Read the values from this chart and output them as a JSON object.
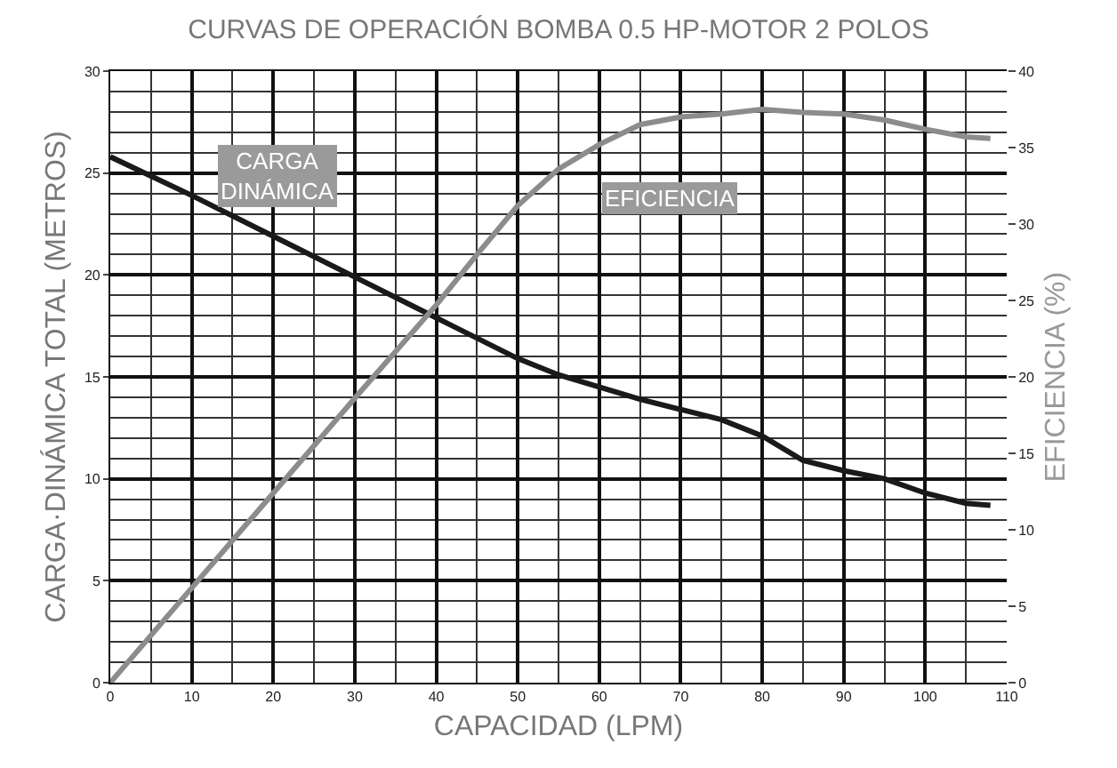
{
  "chart_data": {
    "type": "line",
    "title": "CURVAS DE OPERACIÓN BOMBA 0.5 HP-MOTOR 2 POLOS",
    "xlabel": "CAPACIDAD (LPM)",
    "ylabel": "CARGA·DINÁMICA TOTAL (METROS)",
    "y2label": "EFICIENCIA (%)",
    "series": [
      {
        "name": "CARGA DINÁMICA",
        "color": "#1a1a1a",
        "x": [
          0,
          10,
          20,
          30,
          40,
          50,
          55,
          60,
          65,
          70,
          75,
          80,
          85,
          90,
          95,
          100,
          105,
          108
        ],
        "values": [
          25.8,
          23.9,
          21.9,
          19.9,
          17.9,
          15.9,
          15.1,
          14.5,
          13.9,
          13.4,
          12.9,
          12.1,
          10.9,
          10.4,
          10.0,
          9.3,
          8.8,
          8.7
        ]
      },
      {
        "name": "EFICIENCIA",
        "color": "#8c8c8c",
        "axis": "y2",
        "x": [
          0,
          10,
          20,
          30,
          40,
          45,
          50,
          55,
          60,
          65,
          70,
          75,
          80,
          85,
          90,
          95,
          100,
          105,
          108
        ],
        "values": [
          0,
          6.2,
          12.4,
          18.6,
          24.7,
          28,
          31.2,
          33.6,
          35.2,
          36.5,
          37.0,
          37.2,
          37.5,
          37.3,
          37.2,
          36.8,
          36.2,
          35.7,
          35.6
        ]
      }
    ],
    "xlim": [
      0,
      110
    ],
    "xticks": [
      0,
      10,
      20,
      30,
      40,
      50,
      60,
      70,
      80,
      90,
      100,
      110
    ],
    "ylim": [
      0,
      30
    ],
    "yticks": [
      0,
      5,
      10,
      15,
      20,
      25,
      30
    ],
    "y2lim": [
      0,
      40
    ],
    "y2ticks": [
      0,
      5,
      10,
      15,
      20,
      25,
      30,
      35,
      40
    ],
    "grid": true,
    "legend": false,
    "marker": "none",
    "line_style": "solid"
  }
}
